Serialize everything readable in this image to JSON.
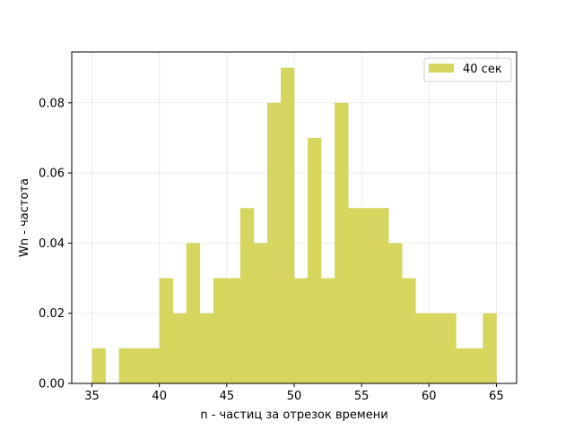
{
  "chart_data": {
    "type": "bar",
    "title": "",
    "xlabel": "n - частиц за отрезок времени",
    "ylabel": "Wn - частота",
    "xlim": [
      33.5,
      66.5
    ],
    "ylim": [
      0,
      0.0945
    ],
    "xticks": [
      35,
      40,
      45,
      50,
      55,
      60,
      65
    ],
    "xtick_labels": [
      "35",
      "40",
      "45",
      "50",
      "55",
      "60",
      "65"
    ],
    "yticks": [
      0,
      0.02,
      0.04,
      0.06,
      0.08
    ],
    "ytick_labels": [
      "0.00",
      "0.02",
      "0.04",
      "0.06",
      "0.08"
    ],
    "grid": true,
    "legend_position": "top-right",
    "bar_color": "#d6d55e",
    "series": [
      {
        "name": "40 сек",
        "bin_edges": [
          35,
          36,
          37,
          38,
          39,
          40,
          41,
          42,
          43,
          44,
          45,
          46,
          47,
          48,
          49,
          50,
          51,
          52,
          53,
          54,
          55,
          56,
          57,
          58,
          59,
          60,
          61,
          62,
          63,
          64,
          65
        ],
        "values": [
          0.01,
          0.0,
          0.01,
          0.01,
          0.01,
          0.03,
          0.02,
          0.04,
          0.02,
          0.03,
          0.03,
          0.05,
          0.04,
          0.08,
          0.09,
          0.03,
          0.07,
          0.03,
          0.08,
          0.05,
          0.05,
          0.05,
          0.04,
          0.03,
          0.02,
          0.02,
          0.02,
          0.01,
          0.01,
          0.02
        ]
      }
    ]
  }
}
